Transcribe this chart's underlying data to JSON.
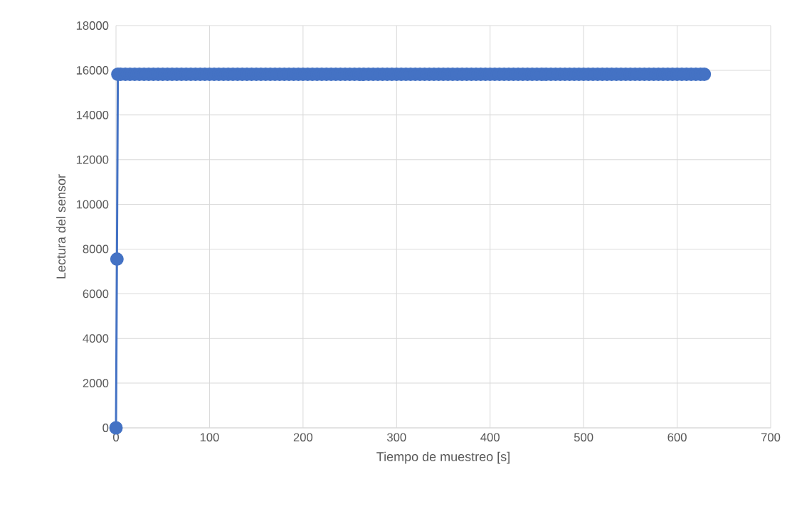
{
  "chart_data": {
    "type": "line",
    "xlabel": "Tiempo de muestreo [s]",
    "ylabel": "Lectura del sensor",
    "xlim": [
      0,
      700
    ],
    "ylim": [
      0,
      18000
    ],
    "xticks": [
      0,
      100,
      200,
      300,
      400,
      500,
      600,
      700
    ],
    "yticks": [
      0,
      2000,
      4000,
      6000,
      8000,
      10000,
      12000,
      14000,
      16000,
      18000
    ],
    "grid": true,
    "marker": "circle",
    "line_style": "solid",
    "series": [
      {
        "color": "#4472c4",
        "x": [
          0,
          1,
          2,
          5,
          10,
          15,
          20,
          25,
          30,
          35,
          40,
          45,
          50,
          55,
          60,
          65,
          70,
          75,
          80,
          85,
          90,
          95,
          100,
          105,
          110,
          115,
          120,
          125,
          130,
          135,
          140,
          145,
          150,
          155,
          160,
          165,
          170,
          175,
          180,
          185,
          190,
          195,
          200,
          205,
          210,
          215,
          220,
          225,
          230,
          235,
          240,
          245,
          250,
          255,
          260,
          265,
          270,
          275,
          280,
          285,
          290,
          295,
          300,
          305,
          310,
          315,
          320,
          325,
          330,
          335,
          340,
          345,
          350,
          355,
          360,
          365,
          370,
          375,
          380,
          385,
          390,
          395,
          400,
          405,
          410,
          415,
          420,
          425,
          430,
          435,
          440,
          445,
          450,
          455,
          460,
          465,
          470,
          475,
          480,
          485,
          490,
          495,
          500,
          505,
          510,
          515,
          520,
          525,
          530,
          535,
          540,
          545,
          550,
          555,
          560,
          565,
          570,
          575,
          580,
          585,
          590,
          595,
          600,
          605,
          610,
          615,
          620,
          625,
          629
        ],
        "values": [
          0,
          7550,
          15820,
          15820,
          15820,
          15820,
          15820,
          15820,
          15820,
          15820,
          15820,
          15820,
          15820,
          15820,
          15820,
          15820,
          15820,
          15820,
          15820,
          15820,
          15820,
          15820,
          15820,
          15820,
          15820,
          15820,
          15820,
          15820,
          15820,
          15820,
          15820,
          15820,
          15820,
          15820,
          15820,
          15820,
          15820,
          15820,
          15820,
          15820,
          15820,
          15820,
          15820,
          15820,
          15820,
          15820,
          15820,
          15820,
          15820,
          15820,
          15820,
          15820,
          15820,
          15820,
          15820,
          15820,
          15820,
          15820,
          15820,
          15820,
          15820,
          15820,
          15820,
          15820,
          15820,
          15820,
          15820,
          15820,
          15820,
          15820,
          15820,
          15820,
          15820,
          15820,
          15820,
          15820,
          15820,
          15820,
          15820,
          15820,
          15820,
          15820,
          15820,
          15820,
          15820,
          15820,
          15820,
          15820,
          15820,
          15820,
          15820,
          15820,
          15820,
          15820,
          15820,
          15820,
          15820,
          15820,
          15820,
          15820,
          15820,
          15820,
          15820,
          15820,
          15820,
          15820,
          15820,
          15820,
          15820,
          15820,
          15820,
          15820,
          15820,
          15820,
          15820,
          15820,
          15820,
          15820,
          15820,
          15820,
          15820,
          15820,
          15820,
          15820,
          15820,
          15820,
          15820,
          15820,
          15820
        ]
      }
    ]
  }
}
